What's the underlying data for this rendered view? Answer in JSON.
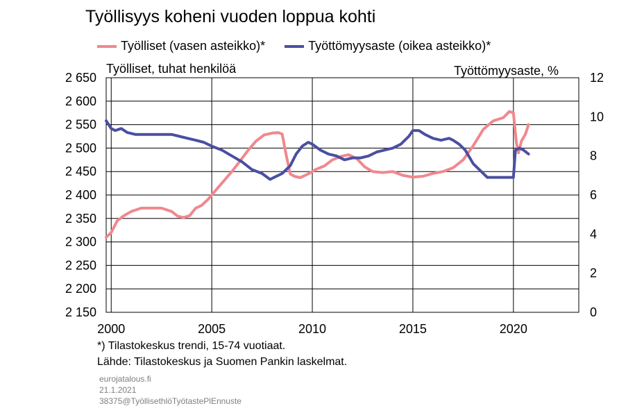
{
  "title": "Työllisyys koheni vuoden loppua kohti",
  "colors": {
    "employed": "#f0888e",
    "unemployment": "#4a4fa0",
    "grid": "#000000"
  },
  "footnote": "*) Tilastokeskus trendi, 15-74 vuotiaat.",
  "source": "Lähde: Tilastokeskus ja Suomen Pankin laskelmat.",
  "meta": {
    "site": "eurojatalous.fi",
    "date": "21.1.2021",
    "code": "38375@TyöllisethlöTyötastePlEnnuste"
  },
  "chart_data": {
    "type": "line",
    "title": "Työllisyys koheni vuoden loppua kohti",
    "left_axis": {
      "label": "Työlliset, tuhat henkilöä",
      "range": [
        2150,
        2650
      ],
      "ticks": [
        "2 650",
        "2 600",
        "2 550",
        "2 500",
        "2 450",
        "2 400",
        "2 350",
        "2 300",
        "2 250",
        "2 200",
        "2 150"
      ],
      "tick_values": [
        2650,
        2600,
        2550,
        2500,
        2450,
        2400,
        2350,
        2300,
        2250,
        2200,
        2150
      ]
    },
    "right_axis": {
      "label": "Työttömyysaste, %",
      "range": [
        0,
        12
      ],
      "ticks": [
        "12",
        "10",
        "8",
        "6",
        "4",
        "2",
        "0"
      ],
      "tick_values": [
        12,
        10,
        8,
        6,
        4,
        2,
        0
      ]
    },
    "x_axis": {
      "range": [
        1999.75,
        2023.25
      ],
      "ticks": [
        "2000",
        "2005",
        "2010",
        "2015",
        "2020"
      ],
      "tick_values": [
        2000,
        2005,
        2010,
        2015,
        2020
      ]
    },
    "grid": true,
    "legend_position": "top",
    "series": [
      {
        "name": "Työlliset (vasen asteikko)*",
        "axis": "left",
        "x": [
          1999.75,
          2000.0,
          2000.3,
          2000.6,
          2001.0,
          2001.5,
          2002.0,
          2002.5,
          2003.0,
          2003.3,
          2003.6,
          2003.9,
          2004.2,
          2004.5,
          2004.8,
          2005.2,
          2005.6,
          2006.0,
          2006.4,
          2006.8,
          2007.2,
          2007.6,
          2008.0,
          2008.3,
          2008.5,
          2008.7,
          2008.9,
          2009.1,
          2009.4,
          2009.8,
          2010.2,
          2010.6,
          2011.0,
          2011.4,
          2011.8,
          2012.2,
          2012.6,
          2013.0,
          2013.5,
          2014.0,
          2014.5,
          2015.0,
          2015.5,
          2016.0,
          2016.5,
          2017.0,
          2017.5,
          2018.0,
          2018.5,
          2019.0,
          2019.5,
          2019.8,
          2020.0,
          2020.15,
          2020.25,
          2020.4,
          2020.6,
          2020.75
        ],
        "y": [
          2310,
          2320,
          2345,
          2355,
          2365,
          2372,
          2372,
          2372,
          2365,
          2355,
          2352,
          2356,
          2372,
          2378,
          2390,
          2410,
          2430,
          2450,
          2472,
          2495,
          2515,
          2528,
          2532,
          2533,
          2530,
          2485,
          2445,
          2440,
          2437,
          2445,
          2455,
          2462,
          2475,
          2482,
          2486,
          2478,
          2460,
          2450,
          2448,
          2450,
          2442,
          2438,
          2440,
          2446,
          2450,
          2458,
          2475,
          2505,
          2540,
          2558,
          2565,
          2578,
          2575,
          2510,
          2490,
          2515,
          2530,
          2550
        ]
      },
      {
        "name": "Työttömyysaste (oikea asteikko)*",
        "axis": "right",
        "x": [
          1999.75,
          2000.0,
          2000.2,
          2000.5,
          2000.8,
          2001.2,
          2001.7,
          2002.2,
          2002.7,
          2003.0,
          2003.4,
          2003.8,
          2004.2,
          2004.6,
          2005.0,
          2005.5,
          2006.0,
          2006.5,
          2007.0,
          2007.5,
          2007.9,
          2008.1,
          2008.5,
          2008.9,
          2009.2,
          2009.5,
          2009.8,
          2010.0,
          2010.4,
          2010.8,
          2011.2,
          2011.6,
          2012.0,
          2012.4,
          2012.8,
          2013.2,
          2013.6,
          2014.0,
          2014.4,
          2014.8,
          2015.0,
          2015.3,
          2015.6,
          2016.0,
          2016.4,
          2016.8,
          2017.0,
          2017.3,
          2017.6,
          2018.0,
          2018.4,
          2018.7,
          2019.0,
          2019.4,
          2019.7,
          2019.9,
          2020.0,
          2020.1,
          2020.3,
          2020.5,
          2020.75
        ],
        "y": [
          9.8,
          9.4,
          9.3,
          9.4,
          9.2,
          9.1,
          9.1,
          9.1,
          9.1,
          9.1,
          9.0,
          8.9,
          8.8,
          8.7,
          8.5,
          8.3,
          8.0,
          7.7,
          7.3,
          7.1,
          6.8,
          6.9,
          7.1,
          7.5,
          8.1,
          8.5,
          8.7,
          8.6,
          8.3,
          8.1,
          8.0,
          7.8,
          7.9,
          7.9,
          8.0,
          8.2,
          8.3,
          8.4,
          8.6,
          9.0,
          9.3,
          9.3,
          9.1,
          8.9,
          8.8,
          8.9,
          8.8,
          8.6,
          8.3,
          7.6,
          7.2,
          6.9,
          6.9,
          6.9,
          6.9,
          6.9,
          6.9,
          8.3,
          8.4,
          8.3,
          8.1
        ]
      }
    ]
  }
}
